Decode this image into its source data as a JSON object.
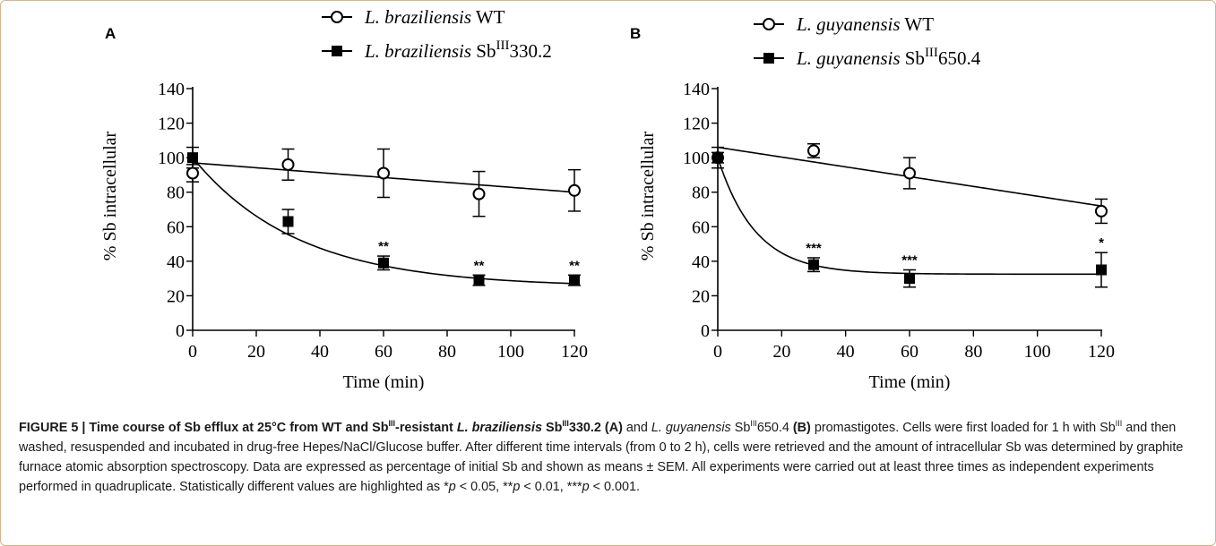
{
  "chart_data": [
    {
      "panel": "A",
      "type": "line",
      "xlabel": "Time (min)",
      "ylabel": "% Sb intracellular",
      "xlim": [
        0,
        120
      ],
      "ylim": [
        0,
        140
      ],
      "x_ticks": [
        0,
        20,
        40,
        60,
        80,
        100,
        120
      ],
      "y_ticks": [
        0,
        20,
        40,
        60,
        80,
        100,
        120,
        140
      ],
      "series": [
        {
          "name_italic": "L. braziliensis",
          "name_suffix": "WT",
          "name_sup": "",
          "name_tail": "",
          "marker": "open-circle",
          "x": [
            0,
            30,
            60,
            90,
            120
          ],
          "y": [
            91,
            96,
            91,
            79,
            81
          ],
          "err": [
            5,
            9,
            14,
            13,
            12
          ],
          "fit": {
            "kind": "linear",
            "y0": 97,
            "y120": 80
          },
          "significance": [
            "",
            "",
            "",
            "",
            ""
          ]
        },
        {
          "name_italic": "L. braziliensis",
          "name_suffix": "Sb",
          "name_sup": "III",
          "name_tail": "330.2",
          "marker": "filled-square",
          "x": [
            0,
            30,
            60,
            90,
            120
          ],
          "y": [
            100,
            63,
            39,
            29,
            29
          ],
          "err": [
            6,
            7,
            4,
            3,
            3
          ],
          "fit": {
            "kind": "exp",
            "y0": 100,
            "plateau": 25,
            "k": 0.03
          },
          "significance": [
            "",
            "",
            "**",
            "**",
            "**"
          ]
        }
      ]
    },
    {
      "panel": "B",
      "type": "line",
      "xlabel": "Time (min)",
      "ylabel": "% Sb intracellular",
      "xlim": [
        0,
        120
      ],
      "ylim": [
        0,
        140
      ],
      "x_ticks": [
        0,
        20,
        40,
        60,
        80,
        100,
        120
      ],
      "y_ticks": [
        0,
        20,
        40,
        60,
        80,
        100,
        120,
        140
      ],
      "series": [
        {
          "name_italic": "L. guyanensis",
          "name_suffix": "WT",
          "name_sup": "",
          "name_tail": "",
          "marker": "open-circle",
          "x": [
            0,
            30,
            60,
            120
          ],
          "y": [
            100,
            104,
            91,
            69
          ],
          "err": [
            3,
            4,
            9,
            7
          ],
          "fit": {
            "kind": "linear",
            "y0": 106,
            "y120": 72
          },
          "significance": [
            "",
            "",
            "",
            ""
          ]
        },
        {
          "name_italic": "L. guyanensis",
          "name_suffix": "Sb",
          "name_sup": "III",
          "name_tail": "650.4",
          "marker": "filled-square",
          "x": [
            0,
            30,
            60,
            120
          ],
          "y": [
            100,
            38,
            30,
            35
          ],
          "err": [
            6,
            4,
            5,
            10
          ],
          "fit": {
            "kind": "exp",
            "y0": 100,
            "plateau": 32.5,
            "k": 0.085
          },
          "significance": [
            "",
            "***",
            "***",
            "*"
          ]
        }
      ]
    }
  ],
  "caption": {
    "fig_label": "FIGURE 5 | Time course of Sb efflux at 25°C from WT and Sb",
    "sup_1": "III",
    "t_1": "-resistant ",
    "i_1": "L. braziliensis",
    "t_2": " Sb",
    "sup_2": "III",
    "t_3": "330.2 (A)",
    "t_4": " and ",
    "i_2": "L. guyanensis",
    "t_5": " Sb",
    "sup_3": "III",
    "t_6": "650.4 ",
    "t_7": "(B)",
    "t_8": " promastigotes. Cells were first loaded for 1 h with Sb",
    "sup_4": "III",
    "t_9": " and then washed, resuspended and incubated in drug-free Hepes/NaCl/Glucose buffer. After different time intervals (from 0 to 2 h), cells were retrieved and the amount of intracellular Sb was determined by graphite furnace atomic absorption spectroscopy. Data are expressed as percentage of initial Sb and shown as means ± SEM. All experiments were carried out at least three times as independent experiments performed in quadruplicate. Statistically different values are highlighted as *",
    "i_p1": "p",
    "t_10": " < 0.05, **",
    "i_p2": "p",
    "t_11": " < 0.01, ***",
    "i_p3": "p",
    "t_12": " < 0.001."
  }
}
